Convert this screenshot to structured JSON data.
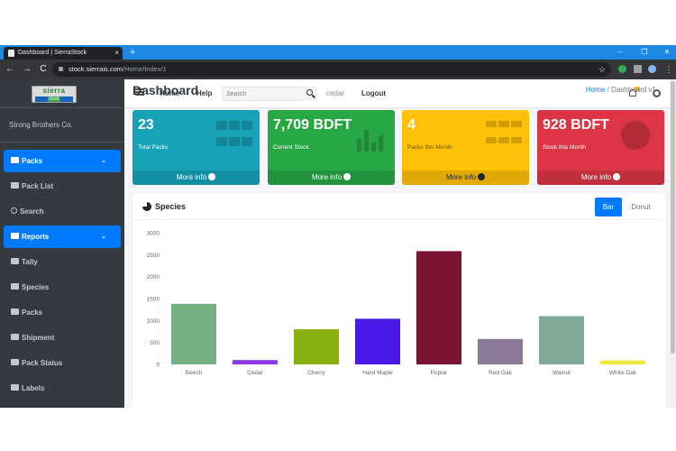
{
  "browser": {
    "tab_title": "Dashboard | SierraStock",
    "tab_close": "×",
    "new_tab": "+",
    "url_host": "stock.sierrais.com",
    "url_path": "/Home/Index/1",
    "window_controls": [
      "–",
      "❐",
      "✕"
    ],
    "nav_icons": [
      "←",
      "→",
      "C"
    ]
  },
  "sidebar": {
    "logo_text": "sierra",
    "logo_sub": "stock",
    "company": "Strong Brothers Co.",
    "items": [
      {
        "label": "Packs",
        "icon": "table-icon",
        "active": true,
        "has_chevron": true
      },
      {
        "label": "Pack List",
        "icon": "table-icon",
        "active": false
      },
      {
        "label": "Search",
        "icon": "search-icon",
        "active": false
      },
      {
        "label": "Reports",
        "icon": "table-icon",
        "active": true,
        "has_chevron": true
      },
      {
        "label": "Tally",
        "icon": "grid-icon",
        "active": false
      },
      {
        "label": "Species",
        "icon": "table-icon",
        "active": false
      },
      {
        "label": "Packs",
        "icon": "table-icon",
        "active": false
      },
      {
        "label": "Shipment",
        "icon": "file-icon",
        "active": false
      },
      {
        "label": "Pack Status",
        "icon": "table-icon",
        "active": false
      },
      {
        "label": "Labels",
        "icon": "tag-icon",
        "active": false
      }
    ],
    "chevron": "⌄"
  },
  "navbar": {
    "home": "Home",
    "help": "Help",
    "search_placeholder": "Search",
    "user": "cedar",
    "logout": "Logout"
  },
  "page": {
    "title": "Dashboard",
    "breadcrumb_home": "Home",
    "breadcrumb_sep": "/",
    "breadcrumb_current": "Dashboard v1"
  },
  "stats": [
    {
      "value": "23",
      "label": "Total Packs",
      "more": "More info",
      "color": "#17a2b8"
    },
    {
      "value": "7,709 BDFT",
      "label": "Current Stock",
      "more": "More info",
      "color": "#28a745"
    },
    {
      "value": "4",
      "label": "Packs this Month",
      "more": "More info",
      "color": "#ffc107"
    },
    {
      "value": "928 BDFT",
      "label": "Stock this Month",
      "more": "More info",
      "color": "#dc3545"
    }
  ],
  "species_card": {
    "title": "Species",
    "btn_bar": "Bar",
    "btn_donut": "Donut"
  },
  "chart_data": {
    "type": "bar",
    "categories": [
      "Beech",
      "Cedar",
      "Cherry",
      "Hard Maple",
      "Poplar",
      "Red Oak",
      "Walnut",
      "White Oak"
    ],
    "values": [
      1380,
      100,
      800,
      1040,
      2580,
      580,
      1100,
      90
    ],
    "colors": [
      "#75b082",
      "#8d3ae6",
      "#87b00f",
      "#4a18e8",
      "#7a1332",
      "#8a7a96",
      "#7fa997",
      "#f2e63c"
    ],
    "ylim": [
      0,
      3000
    ],
    "yticks": [
      0,
      500,
      1000,
      1500,
      2000,
      2500,
      3000
    ],
    "grid": false
  }
}
